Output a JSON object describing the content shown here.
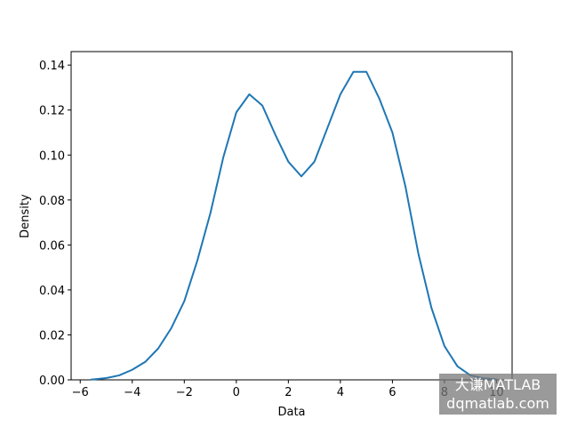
{
  "chart_data": {
    "type": "line",
    "xlabel": "Data",
    "ylabel": "Density",
    "x": [
      -5.6,
      -5.5,
      -5,
      -4.5,
      -4,
      -3.5,
      -3,
      -2.5,
      -2,
      -1.5,
      -1,
      -0.5,
      0,
      0.5,
      1,
      1.5,
      2,
      2.5,
      3,
      3.5,
      4,
      4.5,
      5,
      5.5,
      6,
      6.5,
      7,
      7.5,
      8,
      8.5,
      9,
      9.5,
      10
    ],
    "series": [
      {
        "name": "Density",
        "color": "#1f77b4",
        "values": [
          0.0001,
          0.0002,
          0.0008,
          0.002,
          0.0045,
          0.008,
          0.014,
          0.023,
          0.035,
          0.053,
          0.074,
          0.099,
          0.119,
          0.127,
          0.122,
          0.109,
          0.097,
          0.0905,
          0.097,
          0.112,
          0.127,
          0.137,
          0.137,
          0.125,
          0.11,
          0.086,
          0.056,
          0.032,
          0.015,
          0.006,
          0.002,
          0.0007,
          0.0002
        ]
      }
    ],
    "xlim": [
      -6.35,
      10.6
    ],
    "ylim": [
      0,
      0.146
    ],
    "xticks": [
      {
        "value": -6,
        "label": "−6"
      },
      {
        "value": -4,
        "label": "−4"
      },
      {
        "value": -2,
        "label": "−2"
      },
      0,
      2,
      4,
      6,
      8,
      10
    ],
    "yticks": [
      {
        "value": 0,
        "label": "0.00"
      },
      {
        "value": 0.02,
        "label": "0.02"
      },
      {
        "value": 0.04,
        "label": "0.04"
      },
      {
        "value": 0.06,
        "label": "0.06"
      },
      {
        "value": 0.08,
        "label": "0.08"
      },
      {
        "value": 0.1,
        "label": "0.10"
      },
      {
        "value": 0.12,
        "label": "0.12"
      },
      {
        "value": 0.14,
        "label": "0.14"
      }
    ],
    "watermark": [
      "大谦MATLAB",
      "dqmatlab.com"
    ]
  }
}
